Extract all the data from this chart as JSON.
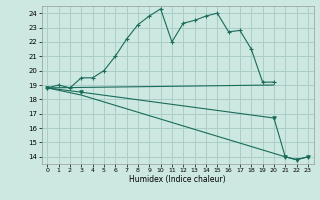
{
  "title": "",
  "xlabel": "Humidex (Indice chaleur)",
  "background_color": "#cce8e0",
  "grid_color": "#aacfc8",
  "line_color": "#1a6b5a",
  "xlim": [
    -0.5,
    23.5
  ],
  "ylim": [
    13.5,
    24.5
  ],
  "xticks": [
    0,
    1,
    2,
    3,
    4,
    5,
    6,
    7,
    8,
    9,
    10,
    11,
    12,
    13,
    14,
    15,
    16,
    17,
    18,
    19,
    20,
    21,
    22,
    23
  ],
  "yticks": [
    14,
    15,
    16,
    17,
    18,
    19,
    20,
    21,
    22,
    23,
    24
  ],
  "series": [
    {
      "x": [
        0,
        1,
        2,
        3,
        4,
        5,
        6,
        7,
        8,
        9,
        10,
        11,
        12,
        13,
        14,
        15,
        16,
        17,
        18,
        19,
        20
      ],
      "y": [
        18.8,
        19.0,
        18.8,
        19.5,
        19.5,
        20.0,
        21.0,
        22.2,
        23.2,
        23.8,
        24.3,
        22.0,
        23.3,
        23.5,
        23.8,
        24.0,
        22.7,
        22.8,
        21.5,
        19.2,
        19.2
      ],
      "marker": "+"
    },
    {
      "x": [
        0,
        20
      ],
      "y": [
        18.8,
        19.0
      ],
      "marker": null
    },
    {
      "x": [
        0,
        3,
        20,
        21,
        22,
        23
      ],
      "y": [
        18.8,
        18.5,
        16.7,
        14.0,
        13.8,
        14.0
      ],
      "marker": "v"
    },
    {
      "x": [
        0,
        3,
        21,
        22,
        23
      ],
      "y": [
        18.8,
        18.3,
        14.0,
        13.8,
        14.0
      ],
      "marker": null
    }
  ]
}
